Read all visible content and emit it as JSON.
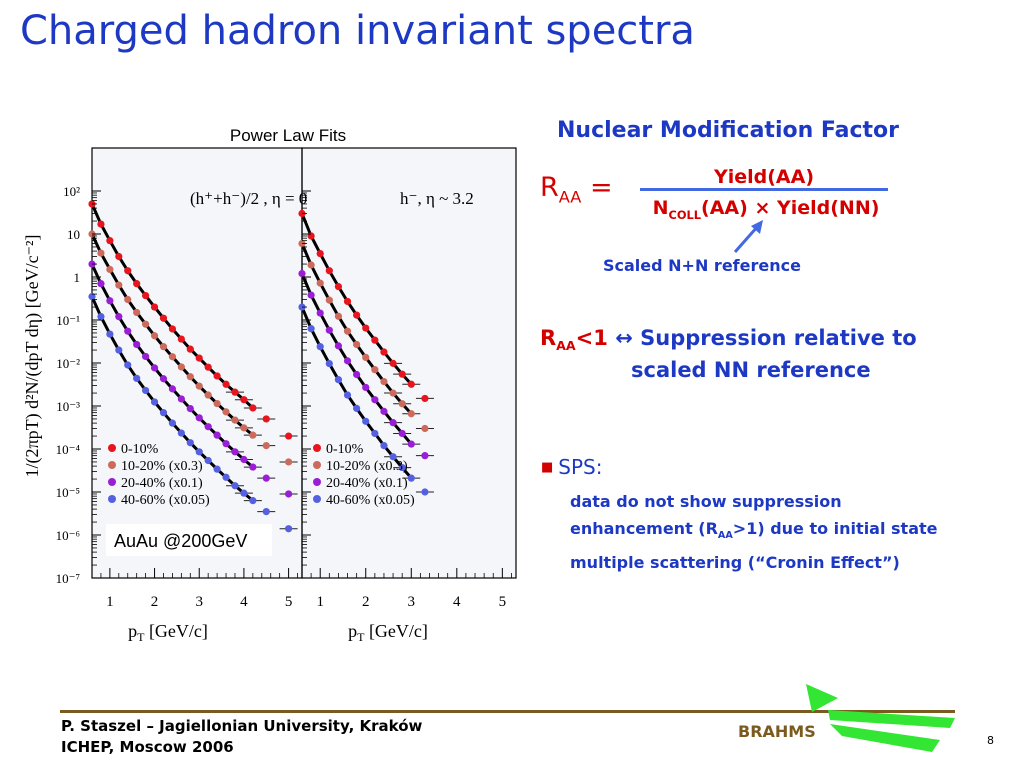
{
  "slide": {
    "title": "Charged hadron invariant spectra",
    "page_number": "8"
  },
  "figure": {
    "title": "Power Law Fits",
    "y_axis_label": "1/(2πpT) d²N/(dpT dη) [GeV/c⁻²]",
    "x_axis_label_main": "p",
    "x_axis_label_sub": "T",
    "x_axis_label_unit": " [GeV/c]",
    "left_panel_label": "(h⁺+h⁻)/2 , η = 0",
    "right_panel_label": "h⁻, η ~ 3.2",
    "system_label": "AuAu @200GeV"
  },
  "chart_data": {
    "type": "scatter",
    "title": "Power Law Fits",
    "xlabel": "pT [GeV/c]",
    "ylabel": "1/(2πpT) d²N/(dpT dη) [GeV/c⁻²]",
    "yscale": "log",
    "ylim": [
      1e-07,
      1000
    ],
    "legend_placement": "bottom-left",
    "grid": false,
    "y_tick_labels": [
      "10⁻⁷",
      "10⁻⁶",
      "10⁻⁵",
      "10⁻⁴",
      "10⁻³",
      "10⁻²",
      "10⁻¹",
      "1",
      "10",
      "10²"
    ],
    "y_tick_exponents": [
      -7,
      -6,
      -5,
      -4,
      -3,
      -2,
      -1,
      0,
      1,
      2
    ],
    "series_colors": [
      "#e8141e",
      "#cc6a5c",
      "#9a1ed6",
      "#5560e0"
    ],
    "panels": [
      {
        "label": "(h⁺+h⁻)/2 , η = 0",
        "xlim": [
          0.6,
          5.3
        ],
        "x_ticks": [
          1,
          2,
          3,
          4,
          5
        ],
        "series": [
          {
            "name": "0-10%",
            "x": [
              0.6,
              0.8,
              1.0,
              1.2,
              1.4,
              1.6,
              1.8,
              2.0,
              2.2,
              2.4,
              2.6,
              2.8,
              3.0,
              3.2,
              3.4,
              3.6,
              3.8,
              4.0,
              4.2,
              4.5,
              5.0
            ],
            "y": [
              50,
              17,
              7,
              3,
              1.4,
              0.7,
              0.37,
              0.2,
              0.11,
              0.062,
              0.036,
              0.021,
              0.013,
              0.008,
              0.005,
              0.0032,
              0.0021,
              0.0014,
              0.0009,
              0.0005,
              0.0002
            ]
          },
          {
            "name": "10-20% (x0.3)",
            "x": [
              0.6,
              0.8,
              1.0,
              1.2,
              1.4,
              1.6,
              1.8,
              2.0,
              2.2,
              2.4,
              2.6,
              2.8,
              3.0,
              3.2,
              3.4,
              3.6,
              3.8,
              4.0,
              4.2,
              4.5,
              5.0
            ],
            "y": [
              10,
              3.6,
              1.5,
              0.65,
              0.3,
              0.15,
              0.08,
              0.043,
              0.024,
              0.014,
              0.0081,
              0.0048,
              0.0029,
              0.0018,
              0.00114,
              0.00073,
              0.00047,
              0.00031,
              0.00021,
              0.00012,
              5e-05
            ]
          },
          {
            "name": "20-40% (x0.1)",
            "x": [
              0.6,
              0.8,
              1.0,
              1.2,
              1.4,
              1.6,
              1.8,
              2.0,
              2.2,
              2.4,
              2.6,
              2.8,
              3.0,
              3.2,
              3.4,
              3.6,
              3.8,
              4.0,
              4.2,
              4.5,
              5.0
            ],
            "y": [
              2,
              0.7,
              0.28,
              0.12,
              0.055,
              0.027,
              0.0142,
              0.0077,
              0.0043,
              0.0025,
              0.00146,
              0.00087,
              0.00053,
              0.00033,
              0.00021,
              0.000133,
              8.6e-05,
              5.7e-05,
              3.8e-05,
              2.1e-05,
              9e-06
            ]
          },
          {
            "name": "40-60% (x0.05)",
            "x": [
              0.6,
              0.8,
              1.0,
              1.2,
              1.4,
              1.6,
              1.8,
              2.0,
              2.2,
              2.4,
              2.6,
              2.8,
              3.0,
              3.2,
              3.4,
              3.6,
              3.8,
              4.0,
              4.2,
              4.5,
              5.0
            ],
            "y": [
              0.35,
              0.12,
              0.047,
              0.02,
              0.009,
              0.0044,
              0.0023,
              0.00124,
              0.0007,
              0.0004,
              0.000235,
              0.00014,
              8.6e-05,
              5.4e-05,
              3.4e-05,
              2.2e-05,
              1.4e-05,
              9.4e-06,
              6.3e-06,
              3.5e-06,
              1.4e-06
            ]
          }
        ]
      },
      {
        "label": "h⁻, η ~ 3.2",
        "xlim": [
          0.6,
          5.3
        ],
        "x_ticks": [
          1,
          2,
          3,
          4,
          5
        ],
        "series": [
          {
            "name": "0-10%",
            "x": [
              0.6,
              0.8,
              1.0,
              1.2,
              1.4,
              1.6,
              1.8,
              2.0,
              2.2,
              2.4,
              2.6,
              2.8,
              3.0,
              3.3
            ],
            "y": [
              30,
              9,
              3.5,
              1.4,
              0.6,
              0.27,
              0.13,
              0.065,
              0.034,
              0.018,
              0.0098,
              0.0055,
              0.0032,
              0.0015
            ]
          },
          {
            "name": "10-20% (x0.3)",
            "x": [
              0.6,
              0.8,
              1.0,
              1.2,
              1.4,
              1.6,
              1.8,
              2.0,
              2.2,
              2.4,
              2.6,
              2.8,
              3.0,
              3.3
            ],
            "y": [
              6,
              1.9,
              0.72,
              0.29,
              0.122,
              0.055,
              0.027,
              0.0135,
              0.007,
              0.0037,
              0.002,
              0.00113,
              0.00066,
              0.0003
            ]
          },
          {
            "name": "20-40% (x0.1)",
            "x": [
              0.6,
              0.8,
              1.0,
              1.2,
              1.4,
              1.6,
              1.8,
              2.0,
              2.2,
              2.4,
              2.6,
              2.8,
              3.0,
              3.3
            ],
            "y": [
              1.2,
              0.38,
              0.145,
              0.058,
              0.025,
              0.0112,
              0.0054,
              0.0027,
              0.0014,
              0.00075,
              0.00041,
              0.00023,
              0.00013,
              7e-05
            ]
          },
          {
            "name": "40-60% (x0.05)",
            "x": [
              0.6,
              0.8,
              1.0,
              1.2,
              1.4,
              1.6,
              1.8,
              2.0,
              2.2,
              2.4,
              2.6,
              2.8,
              3.0,
              3.3
            ],
            "y": [
              0.2,
              0.063,
              0.024,
              0.0097,
              0.0041,
              0.0018,
              0.00088,
              0.00044,
              0.00023,
              0.00012,
              6.6e-05,
              3.7e-05,
              2.1e-05,
              1e-05
            ]
          }
        ]
      }
    ]
  },
  "nmf": {
    "title": "Nuclear Modification Factor",
    "raa_main": "R",
    "raa_sub": "AA",
    "equals": " =",
    "numerator": "Yield(AA)",
    "den_n": "N",
    "den_sub": "COLL",
    "den_rest": "(AA) × Yield(NN)",
    "reference_label": "Scaled N+N reference",
    "supp_r": "R",
    "supp_sub": "AA",
    "supp_lt": "<1 ",
    "supp_arrow": "↔",
    "supp_text1": " Suppression relative to",
    "supp_text2": "scaled NN reference",
    "sps_label": "SPS:",
    "sps_line1": "data do not show suppression",
    "sps_line2a": "enhancement (R",
    "sps_line2sub": "AA",
    "sps_line2b": ">1) due to initial state",
    "sps_line3": "multiple scattering (“Cronin Effect”)"
  },
  "footer": {
    "line1": "P. Staszel – Jagiellonian University, Kraków",
    "line2": "ICHEP, Moscow 2006",
    "brahms": "BRAHMS"
  },
  "colors": {
    "title_blue": "#1d39c4",
    "accent_red": "#d40000",
    "footer_brown": "#7a5a1e",
    "logo_green": "#33e633"
  }
}
